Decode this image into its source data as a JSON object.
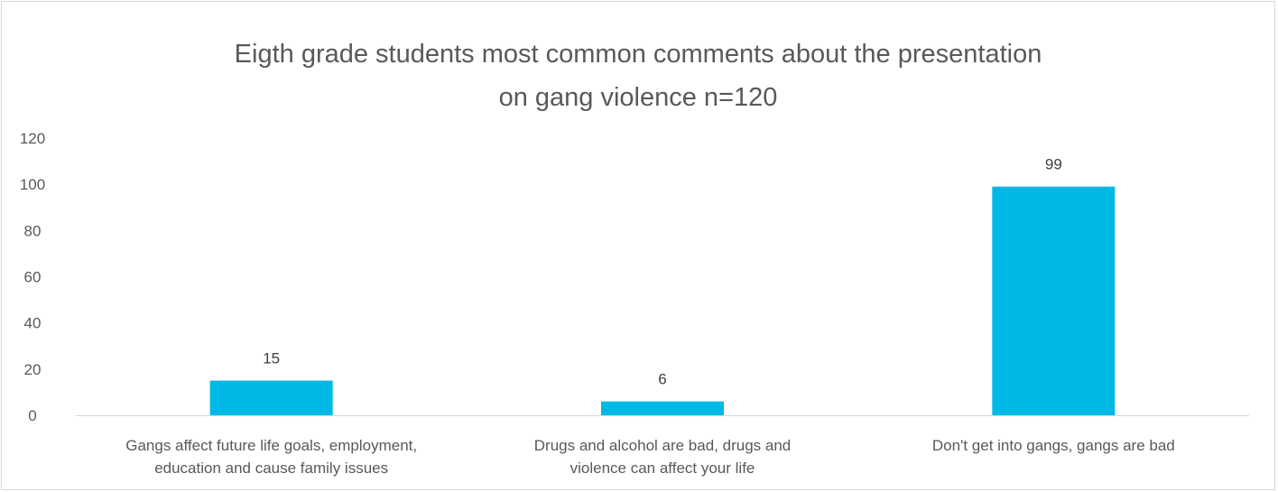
{
  "chart_data": {
    "type": "bar",
    "title": [
      "Eigth grade students most common comments about the presentation",
      "on gang violence n=120"
    ],
    "categories": [
      [
        "Gangs affect future life goals, employment,",
        "education and cause family issues"
      ],
      [
        "Drugs and alcohol are bad, drugs and",
        "violence can affect your life"
      ],
      [
        "Don't get into gangs, gangs are bad"
      ]
    ],
    "values": [
      15,
      6,
      99
    ],
    "data_labels": [
      "15",
      "6",
      "99"
    ],
    "yticks": [
      "0",
      "20",
      "40",
      "60",
      "80",
      "100",
      "120"
    ],
    "ylim": [
      0,
      120
    ],
    "grid": false,
    "legend": false,
    "bar_color": "#00b8e6",
    "axis_color": "#d9d9d9"
  }
}
